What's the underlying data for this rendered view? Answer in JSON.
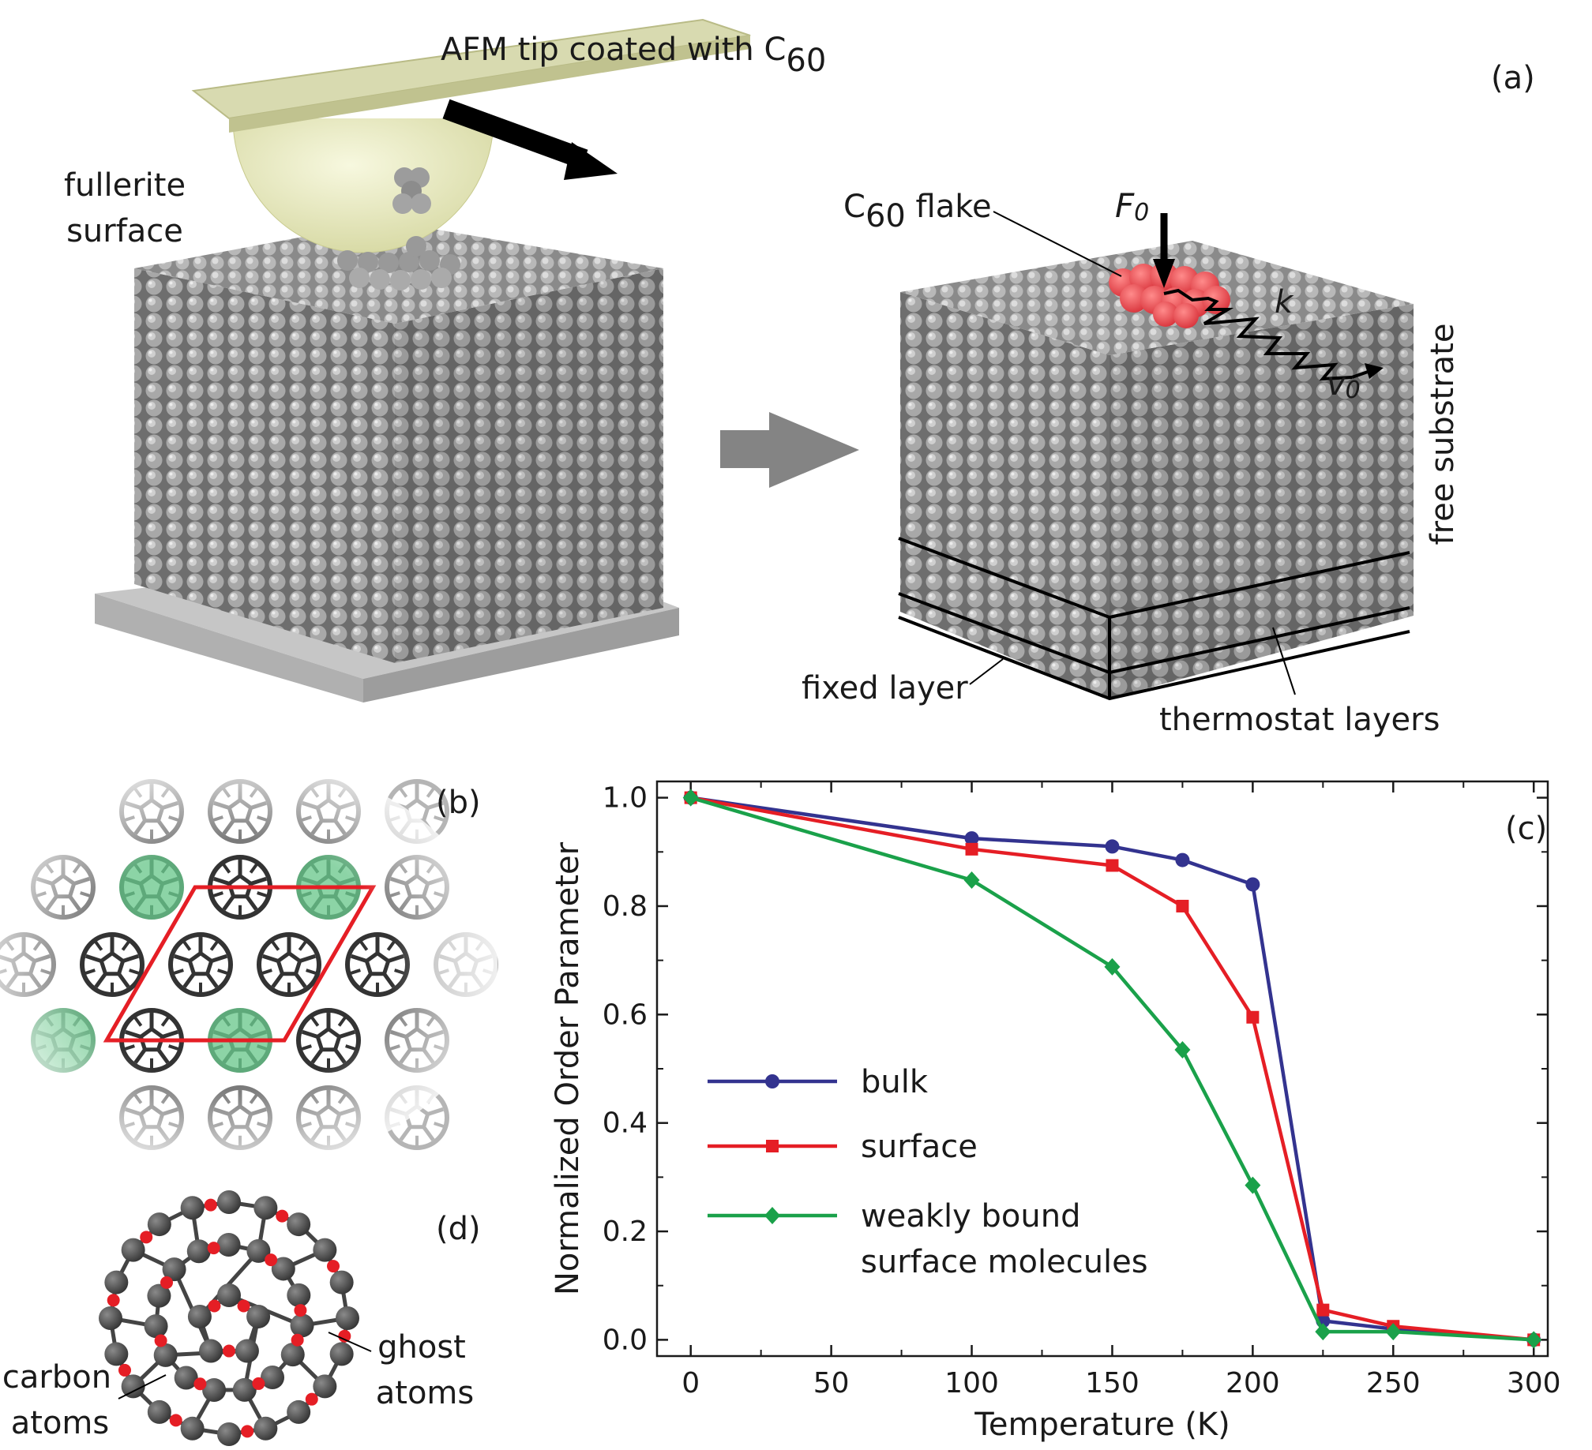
{
  "panel_a": {
    "panel_label": "(a)",
    "tip_label": {
      "main": "AFM tip coated with C",
      "sub": "60"
    },
    "surface_label": [
      "fullerite",
      "surface"
    ],
    "flake_label": {
      "pre": "C",
      "sub": "60",
      "post": " flake"
    },
    "force_label": {
      "main": "F",
      "sub": "0"
    },
    "spring_label": "k",
    "velocity_label": {
      "main": "v",
      "sub": "0"
    },
    "free_substrate_label": "free substrate",
    "fixed_layer_label": "fixed layer",
    "thermostat_label": "thermostat layers",
    "colors": {
      "tip": "#e4e5b8",
      "flake": "#e8474e",
      "arrow": "#848484",
      "base": "#c4c4c4",
      "molecule": "#8f8f8f"
    }
  },
  "panel_b": {
    "panel_label": "(b)",
    "colors": {
      "cell": "#e51e25",
      "highlight": "#7fcf9c"
    }
  },
  "panel_d": {
    "panel_label": "(d)",
    "carbon_label": [
      "carbon",
      "atoms"
    ],
    "ghost_label": [
      "ghost",
      "atoms"
    ],
    "colors": {
      "carbon": "#3b3b3b",
      "ghost": "#e51e25"
    }
  },
  "panel_c": {
    "panel_label": "(c)"
  },
  "chart_data": {
    "type": "line",
    "xlabel": "Temperature (K)",
    "ylabel": "Normalized Order Parameter",
    "xlim": [
      -12,
      305
    ],
    "ylim": [
      -0.03,
      1.03
    ],
    "xticks": [
      0,
      50,
      100,
      150,
      200,
      250,
      300
    ],
    "yticks": [
      0.0,
      0.2,
      0.4,
      0.6,
      0.8,
      1.0
    ],
    "x_tick_labels": [
      "0",
      "50",
      "100",
      "150",
      "200",
      "250",
      "300"
    ],
    "y_tick_labels": [
      "0.0",
      "0.2",
      "0.4",
      "0.6",
      "0.8",
      "1.0"
    ],
    "legend": "center-left",
    "series": [
      {
        "name": "bulk",
        "color": "#33338f",
        "marker": "circle",
        "x": [
          0,
          100,
          150,
          175,
          200,
          225,
          250,
          300
        ],
        "y": [
          1.0,
          0.925,
          0.91,
          0.885,
          0.84,
          0.035,
          0.02,
          0.0
        ]
      },
      {
        "name": "surface",
        "color": "#e51e25",
        "marker": "square",
        "x": [
          0,
          100,
          150,
          175,
          200,
          225,
          250,
          300
        ],
        "y": [
          1.0,
          0.905,
          0.875,
          0.8,
          0.595,
          0.055,
          0.025,
          0.0
        ]
      },
      {
        "name": "weakly bound",
        "name_line2": "surface molecules",
        "color": "#1aa14a",
        "marker": "diamond",
        "x": [
          0,
          100,
          150,
          175,
          200,
          225,
          250,
          300
        ],
        "y": [
          1.0,
          0.848,
          0.688,
          0.535,
          0.285,
          0.015,
          0.015,
          0.0
        ]
      }
    ]
  }
}
